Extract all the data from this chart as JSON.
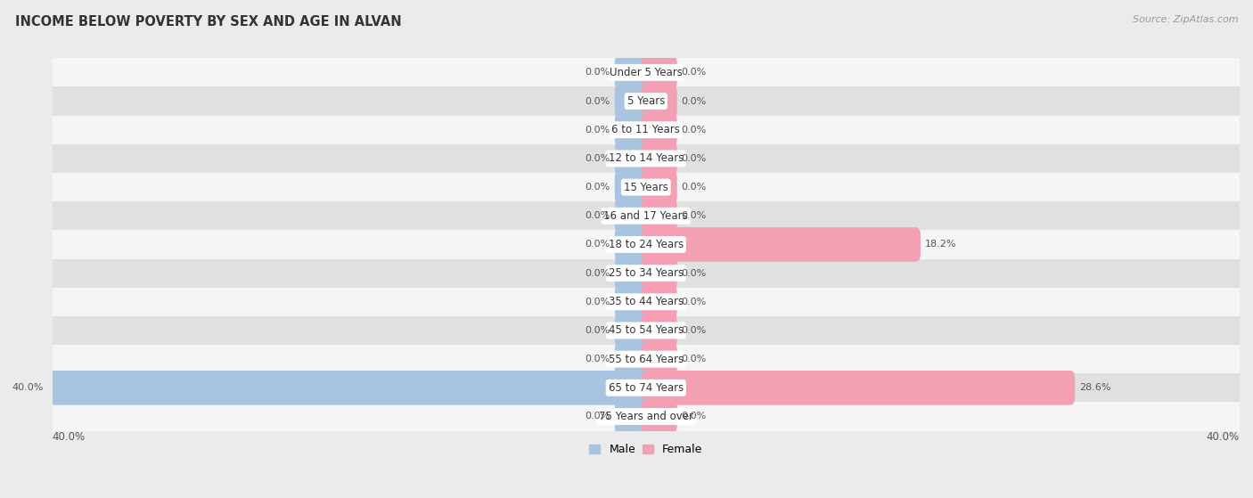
{
  "title": "INCOME BELOW POVERTY BY SEX AND AGE IN ALVAN",
  "source": "Source: ZipAtlas.com",
  "categories": [
    "Under 5 Years",
    "5 Years",
    "6 to 11 Years",
    "12 to 14 Years",
    "15 Years",
    "16 and 17 Years",
    "18 to 24 Years",
    "25 to 34 Years",
    "35 to 44 Years",
    "45 to 54 Years",
    "55 to 64 Years",
    "65 to 74 Years",
    "75 Years and over"
  ],
  "male_values": [
    0.0,
    0.0,
    0.0,
    0.0,
    0.0,
    0.0,
    0.0,
    0.0,
    0.0,
    0.0,
    0.0,
    40.0,
    0.0
  ],
  "female_values": [
    0.0,
    0.0,
    0.0,
    0.0,
    0.0,
    0.0,
    18.2,
    0.0,
    0.0,
    0.0,
    0.0,
    28.6,
    0.0
  ],
  "male_color": "#a8c4e0",
  "female_color": "#f4a0b4",
  "male_label": "Male",
  "female_label": "Female",
  "axis_max": 40.0,
  "bg_color": "#ebebeb",
  "row_bg_light": "#f5f5f5",
  "row_bg_dark": "#e0e0e0",
  "title_fontsize": 10.5,
  "label_fontsize": 8.5,
  "value_fontsize": 8,
  "source_fontsize": 8,
  "stub_size": 1.8
}
